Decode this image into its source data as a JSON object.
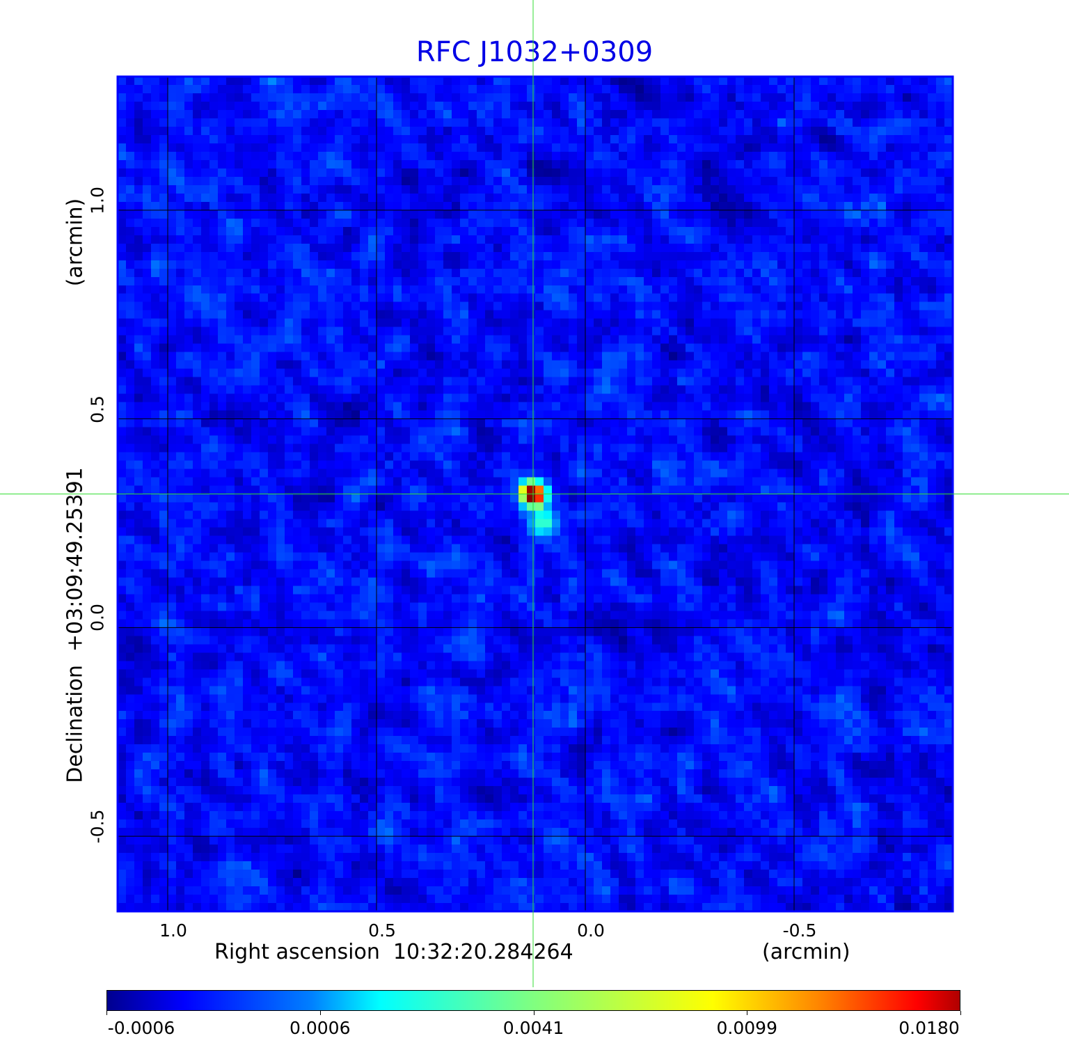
{
  "chart_data": {
    "type": "heatmap",
    "title": "RFC J1032+0309",
    "xlabel": "Right ascension  10:32:20.284264",
    "xunit": "(arcmin)",
    "ylabel": "Declination  +03:09:49.25391",
    "yunit": "(arcmin)",
    "xlim": [
      1.12,
      -0.88
    ],
    "ylim": [
      -0.68,
      1.32
    ],
    "x_ticks": [
      1.0,
      0.5,
      0.0,
      -0.5
    ],
    "x_tick_labels": [
      "1.0",
      "0.5",
      "0.0",
      "-0.5"
    ],
    "y_ticks": [
      1.0,
      0.5,
      0.0,
      -0.5
    ],
    "y_tick_labels": [
      "1.0",
      "0.5",
      "0.0",
      "-0.5"
    ],
    "grid": true,
    "grid_color": "#000000",
    "crosshair": {
      "x": 0.125,
      "y": 0.32,
      "color": "#33dd33"
    },
    "source": {
      "x": 0.125,
      "y": 0.32,
      "peak": 0.018
    },
    "colormap": "jet",
    "colorbar": {
      "orientation": "horizontal",
      "position": "bottom",
      "tick_labels": [
        "-0.0006",
        "0.0006",
        "0.0041",
        "0.0099",
        "0.0180"
      ]
    },
    "frame_color": "#0000ff",
    "title_color": "#0000e6"
  }
}
